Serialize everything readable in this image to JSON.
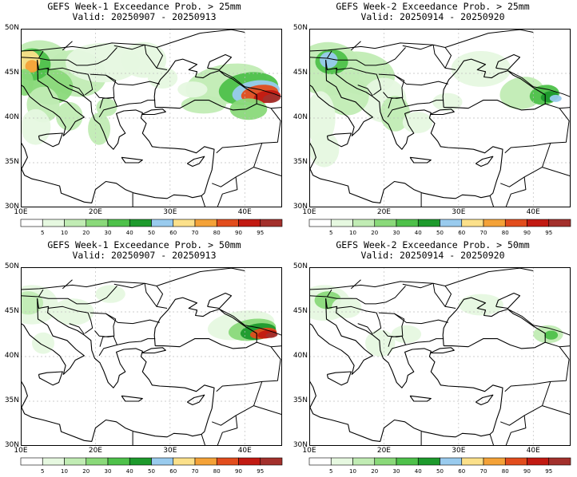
{
  "panels": [
    {
      "id": "w1_25",
      "title": "GEFS Week-1 Exceedance Prob. > 25mm",
      "valid": "Valid: 20250907 - 20250913"
    },
    {
      "id": "w2_25",
      "title": "GEFS Week-2 Exceedance Prob. > 25mm",
      "valid": "Valid: 20250914 - 20250920"
    },
    {
      "id": "w1_50",
      "title": "GEFS Week-1 Exceedance Prob. > 50mm",
      "valid": "Valid: 20250907 - 20250913"
    },
    {
      "id": "w2_50",
      "title": "GEFS Week-2 Exceedance Prob. > 50mm",
      "valid": "Valid: 20250914 - 20250920"
    }
  ],
  "lat_labels": [
    "50N",
    "45N",
    "40N",
    "35N",
    "30N"
  ],
  "lon_labels": [
    "10E",
    "20E",
    "30E",
    "40E"
  ],
  "colorbar": {
    "labels": [
      "5",
      "10",
      "20",
      "30",
      "40",
      "50",
      "60",
      "70",
      "80",
      "90",
      "95"
    ],
    "colors": [
      "#ffffff",
      "#e6f8e0",
      "#c1ecb4",
      "#8ad97a",
      "#4ec14a",
      "#1d9a2c",
      "#99cbee",
      "#fbe08a",
      "#f4a238",
      "#e24d1d",
      "#c21a12",
      "#a3302c"
    ]
  }
}
